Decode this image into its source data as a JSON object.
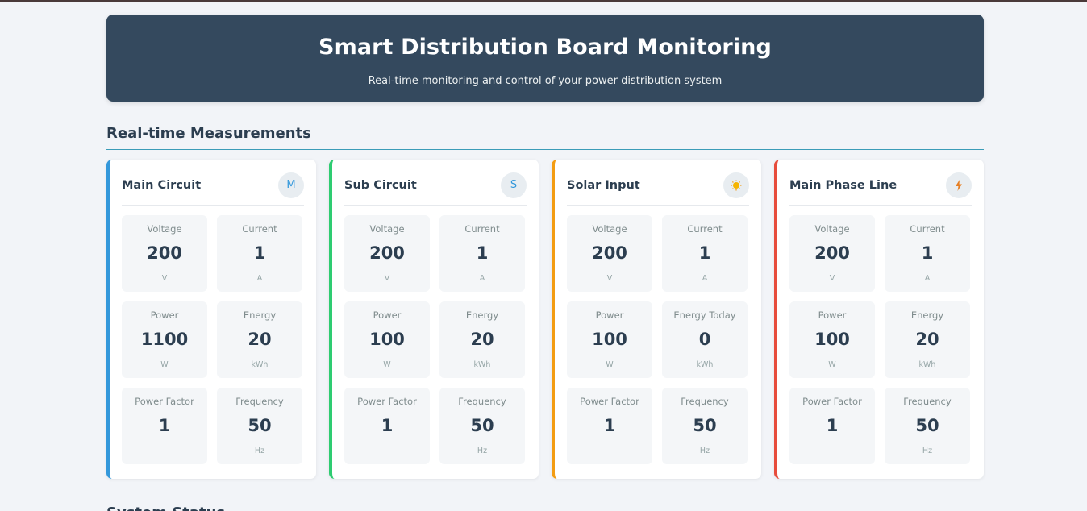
{
  "header": {
    "title": "Smart Distribution Board Monitoring",
    "subtitle": "Real-time monitoring and control of your power distribution system"
  },
  "section_title": "Real-time Measurements",
  "cards": [
    {
      "title": "Main Circuit",
      "icon_name": "letter-m-icon",
      "icon_text": "M",
      "accent": "#3498db",
      "metrics": [
        {
          "label": "Voltage",
          "value": "200",
          "unit": "V"
        },
        {
          "label": "Current",
          "value": "1",
          "unit": "A"
        },
        {
          "label": "Power",
          "value": "1100",
          "unit": "W"
        },
        {
          "label": "Energy",
          "value": "20",
          "unit": "kWh"
        },
        {
          "label": "Power Factor",
          "value": "1",
          "unit": ""
        },
        {
          "label": "Frequency",
          "value": "50",
          "unit": "Hz"
        }
      ]
    },
    {
      "title": "Sub Circuit",
      "icon_name": "letter-s-icon",
      "icon_text": "S",
      "accent": "#2ecc71",
      "metrics": [
        {
          "label": "Voltage",
          "value": "200",
          "unit": "V"
        },
        {
          "label": "Current",
          "value": "1",
          "unit": "A"
        },
        {
          "label": "Power",
          "value": "100",
          "unit": "W"
        },
        {
          "label": "Energy",
          "value": "20",
          "unit": "kWh"
        },
        {
          "label": "Power Factor",
          "value": "1",
          "unit": ""
        },
        {
          "label": "Frequency",
          "value": "50",
          "unit": "Hz"
        }
      ]
    },
    {
      "title": "Solar Input",
      "icon_name": "sun-icon",
      "icon_text": "",
      "accent": "#f39c12",
      "metrics": [
        {
          "label": "Voltage",
          "value": "200",
          "unit": "V"
        },
        {
          "label": "Current",
          "value": "1",
          "unit": "A"
        },
        {
          "label": "Power",
          "value": "100",
          "unit": "W"
        },
        {
          "label": "Energy Today",
          "value": "0",
          "unit": "kWh"
        },
        {
          "label": "Power Factor",
          "value": "1",
          "unit": ""
        },
        {
          "label": "Frequency",
          "value": "50",
          "unit": "Hz"
        }
      ]
    },
    {
      "title": "Main Phase Line",
      "icon_name": "lightning-icon",
      "icon_text": "",
      "accent": "#e74c3c",
      "metrics": [
        {
          "label": "Voltage",
          "value": "200",
          "unit": "V"
        },
        {
          "label": "Current",
          "value": "1",
          "unit": "A"
        },
        {
          "label": "Power",
          "value": "100",
          "unit": "W"
        },
        {
          "label": "Energy",
          "value": "20",
          "unit": "kWh"
        },
        {
          "label": "Power Factor",
          "value": "1",
          "unit": ""
        },
        {
          "label": "Frequency",
          "value": "50",
          "unit": "Hz"
        }
      ]
    }
  ],
  "next_section_title": "System Status"
}
